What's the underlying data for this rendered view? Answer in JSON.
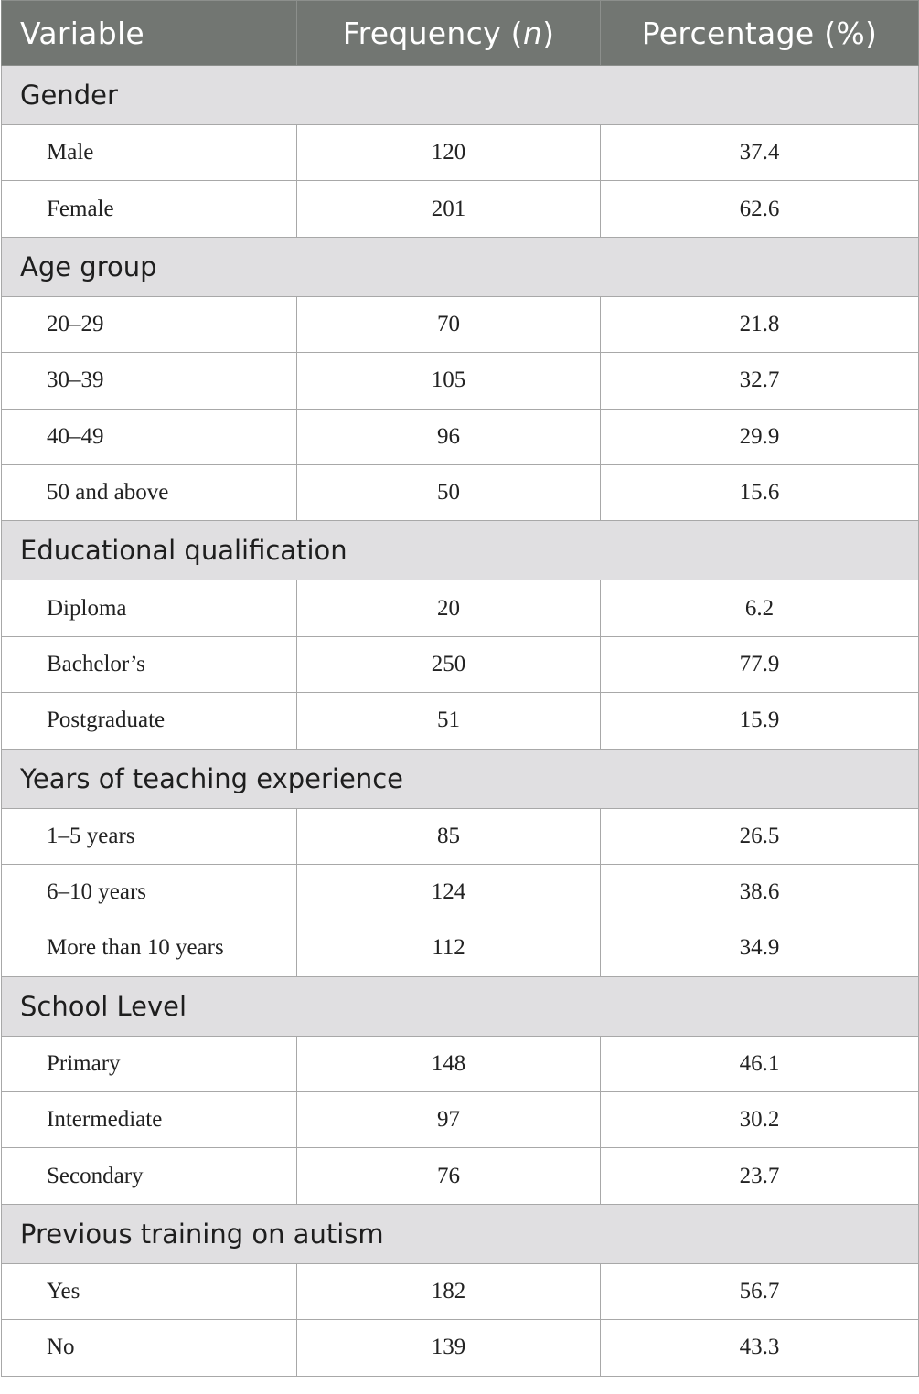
{
  "header": {
    "variable": "Variable",
    "frequency_prefix": "Frequency (",
    "frequency_italic": "n",
    "frequency_suffix": ")",
    "percentage": "Percentage (%)"
  },
  "groups": [
    {
      "title": "Gender",
      "rows": [
        {
          "label": "Male",
          "n": "120",
          "pct": "37.4"
        },
        {
          "label": "Female",
          "n": "201",
          "pct": "62.6"
        }
      ]
    },
    {
      "title": "Age group",
      "rows": [
        {
          "label": "20–29",
          "n": "70",
          "pct": "21.8"
        },
        {
          "label": "30–39",
          "n": "105",
          "pct": "32.7"
        },
        {
          "label": "40–49",
          "n": "96",
          "pct": "29.9"
        },
        {
          "label": "50 and above",
          "n": "50",
          "pct": "15.6"
        }
      ]
    },
    {
      "title": "Educational qualification",
      "rows": [
        {
          "label": "Diploma",
          "n": "20",
          "pct": "6.2"
        },
        {
          "label": "Bachelor’s",
          "n": "250",
          "pct": "77.9"
        },
        {
          "label": "Postgraduate",
          "n": "51",
          "pct": "15.9"
        }
      ]
    },
    {
      "title": "Years of teaching experience",
      "rows": [
        {
          "label": "1–5 years",
          "n": "85",
          "pct": "26.5"
        },
        {
          "label": "6–10 years",
          "n": "124",
          "pct": "38.6"
        },
        {
          "label": "More than 10 years",
          "n": "112",
          "pct": "34.9"
        }
      ]
    },
    {
      "title": "School Level",
      "rows": [
        {
          "label": "Primary",
          "n": "148",
          "pct": "46.1"
        },
        {
          "label": "Intermediate",
          "n": "97",
          "pct": "30.2"
        },
        {
          "label": "Secondary",
          "n": "76",
          "pct": "23.7"
        }
      ]
    },
    {
      "title": "Previous training on autism",
      "rows": [
        {
          "label": "Yes",
          "n": "182",
          "pct": "56.7"
        },
        {
          "label": "No",
          "n": "139",
          "pct": "43.3"
        }
      ]
    }
  ]
}
